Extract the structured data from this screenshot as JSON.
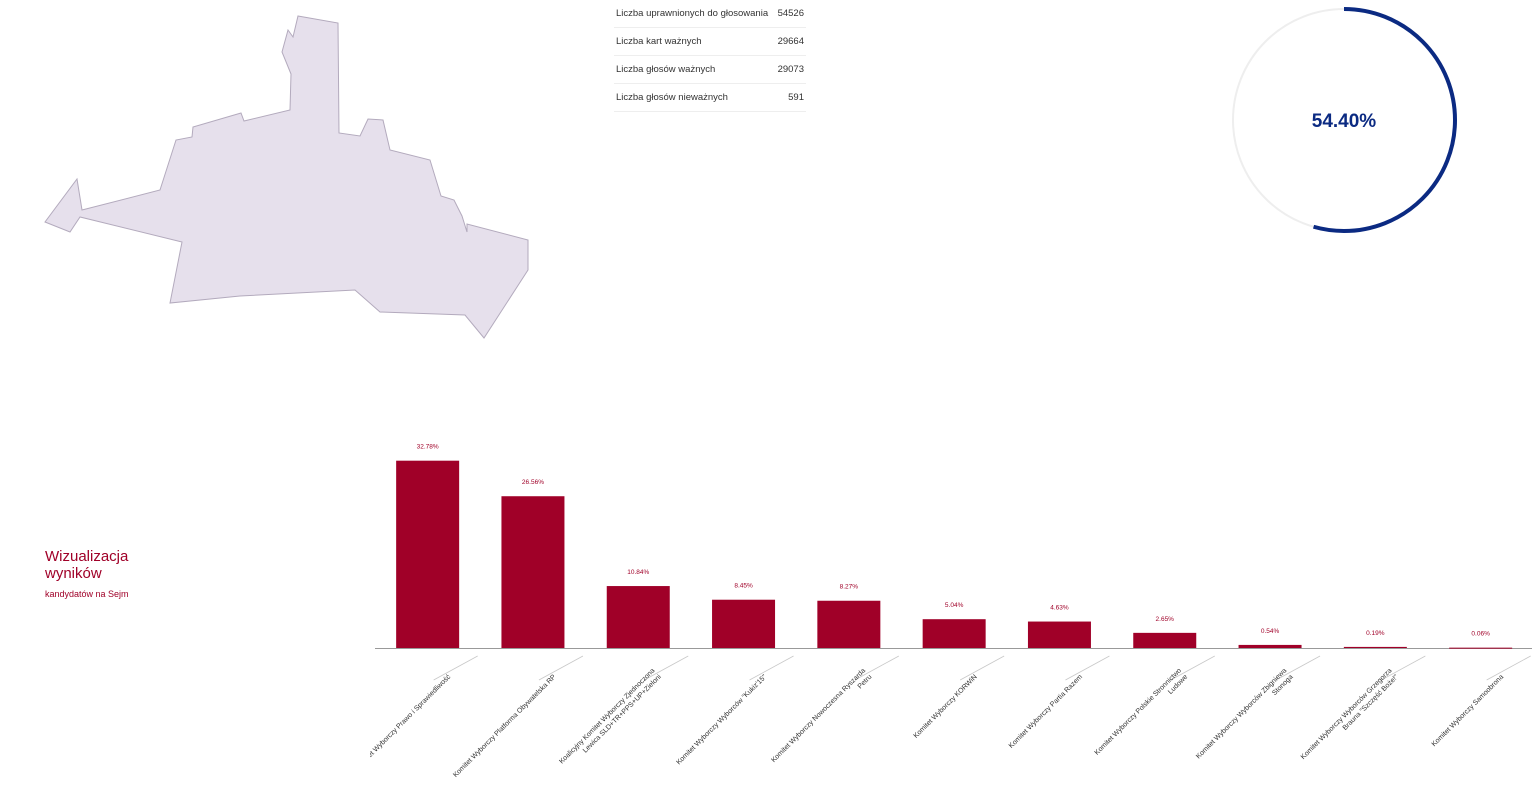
{
  "stats": [
    {
      "label": "Liczba uprawnionych do głosowania",
      "value": "54526"
    },
    {
      "label": "Liczba kart ważnych",
      "value": "29664"
    },
    {
      "label": "Liczba głosów ważnych",
      "value": "29073"
    },
    {
      "label": "Liczba głosów nieważnych",
      "value": "591"
    }
  ],
  "turnout": {
    "value": 54.4,
    "label": "54.40%"
  },
  "colors": {
    "accent": "#a00028",
    "ring": "#0b2a82",
    "ring_track": "#eeeeee",
    "map_fill": "#e6e0ec",
    "map_stroke": "#b3aabd"
  },
  "caption": {
    "title_line1": "Wizualizacja",
    "title_line2": "wyników",
    "subtitle": "kandydatów na Sejm"
  },
  "chart_data": {
    "type": "bar",
    "title": "",
    "xlabel": "",
    "ylabel": "",
    "ylim": [
      0,
      35
    ],
    "grid": false,
    "categories": [
      [
        "Komitet Wyborczy Prawo i Sprawiedliwość"
      ],
      [
        "Komitet Wyborczy Platforma Obywatelska RP"
      ],
      [
        "Koalicyjny Komitet Wyborczy Zjednoczona",
        "Lewica SLD+TR+PPS+UP+Zieloni"
      ],
      [
        "Komitet Wyborczy Wyborców \"Kukiz'15\""
      ],
      [
        "Komitet Wyborczy Nowoczesna Ryszarda",
        "Petru"
      ],
      [
        "Komitet Wyborczy KORWiN"
      ],
      [
        "Komitet Wyborczy Partia Razem"
      ],
      [
        "Komitet Wyborczy Polskie Stronnictwo",
        "Ludowe"
      ],
      [
        "Komitet Wyborczy Wyborców Zbigniewa",
        "Stonoga"
      ],
      [
        "Komitet Wyborczy Wyborców Grzegorza",
        "Brauna \"Szczęść Boże!\""
      ],
      [
        "Komitet Wyborczy Samoobrona"
      ]
    ],
    "values": [
      32.78,
      26.56,
      10.84,
      8.45,
      8.27,
      5.04,
      4.63,
      2.65,
      0.54,
      0.19,
      0.06
    ],
    "value_labels": [
      "32.78%",
      "26.56%",
      "10.84%",
      "8.45%",
      "8.27%",
      "5.04%",
      "4.63%",
      "2.65%",
      "0.54%",
      "0.19%",
      "0.06%"
    ]
  }
}
